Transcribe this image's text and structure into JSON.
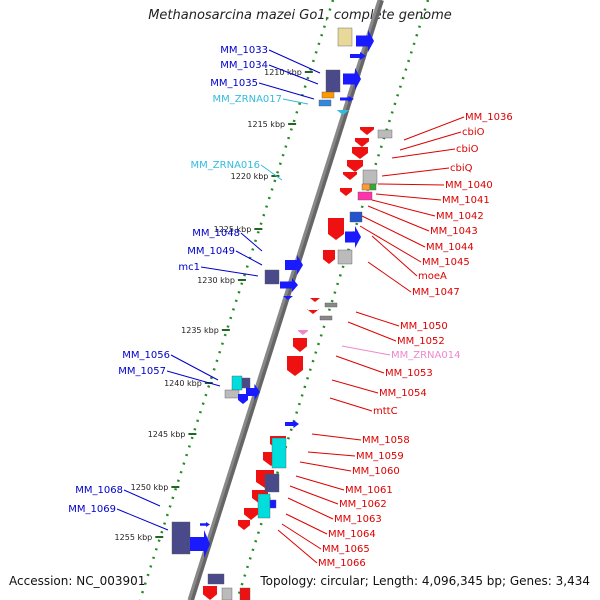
{
  "title": "Methanosarcina mazei Go1, complete genome",
  "footer": {
    "accession": "Accession: NC_003901",
    "summary": "Topology: circular; Length: 4,096,345 bp; Genes: 3,434"
  },
  "colors": {
    "left_gene_label": "#0000cc",
    "right_gene_label": "#dd0000",
    "rna_label_left": "#33bbdd",
    "rna_label_right": "#ee88cc",
    "chromosome_bar": "#888888",
    "tick_dots": "#228b22"
  },
  "ticks": [
    "1210 kbp",
    "1215 kbp",
    "1220 kbp",
    "1225 kbp",
    "1230 kbp",
    "1235 kbp",
    "1240 kbp",
    "1245 kbp",
    "1250 kbp",
    "1255 kbp"
  ],
  "left_labels": [
    "MM_1033",
    "MM_1034",
    "MM_1035",
    "MM_ZRNA017",
    "MM_ZRNA016",
    "MM_1048",
    "MM_1049",
    "mc1",
    "MM_1056",
    "MM_1057",
    "MM_1068",
    "MM_1069"
  ],
  "right_labels": [
    "MM_1036",
    "cbiO",
    "cbiO",
    "cbiQ",
    "MM_1040",
    "MM_1041",
    "MM_1042",
    "MM_1043",
    "MM_1044",
    "MM_1045",
    "moeA",
    "MM_1047",
    "MM_1050",
    "MM_1052",
    "MM_ZRNA014",
    "MM_1053",
    "MM_1054",
    "mttC",
    "MM_1058",
    "MM_1059",
    "MM_1060",
    "MM_1061",
    "MM_1062",
    "MM_1063",
    "MM_1064",
    "MM_1065",
    "MM_1066"
  ]
}
